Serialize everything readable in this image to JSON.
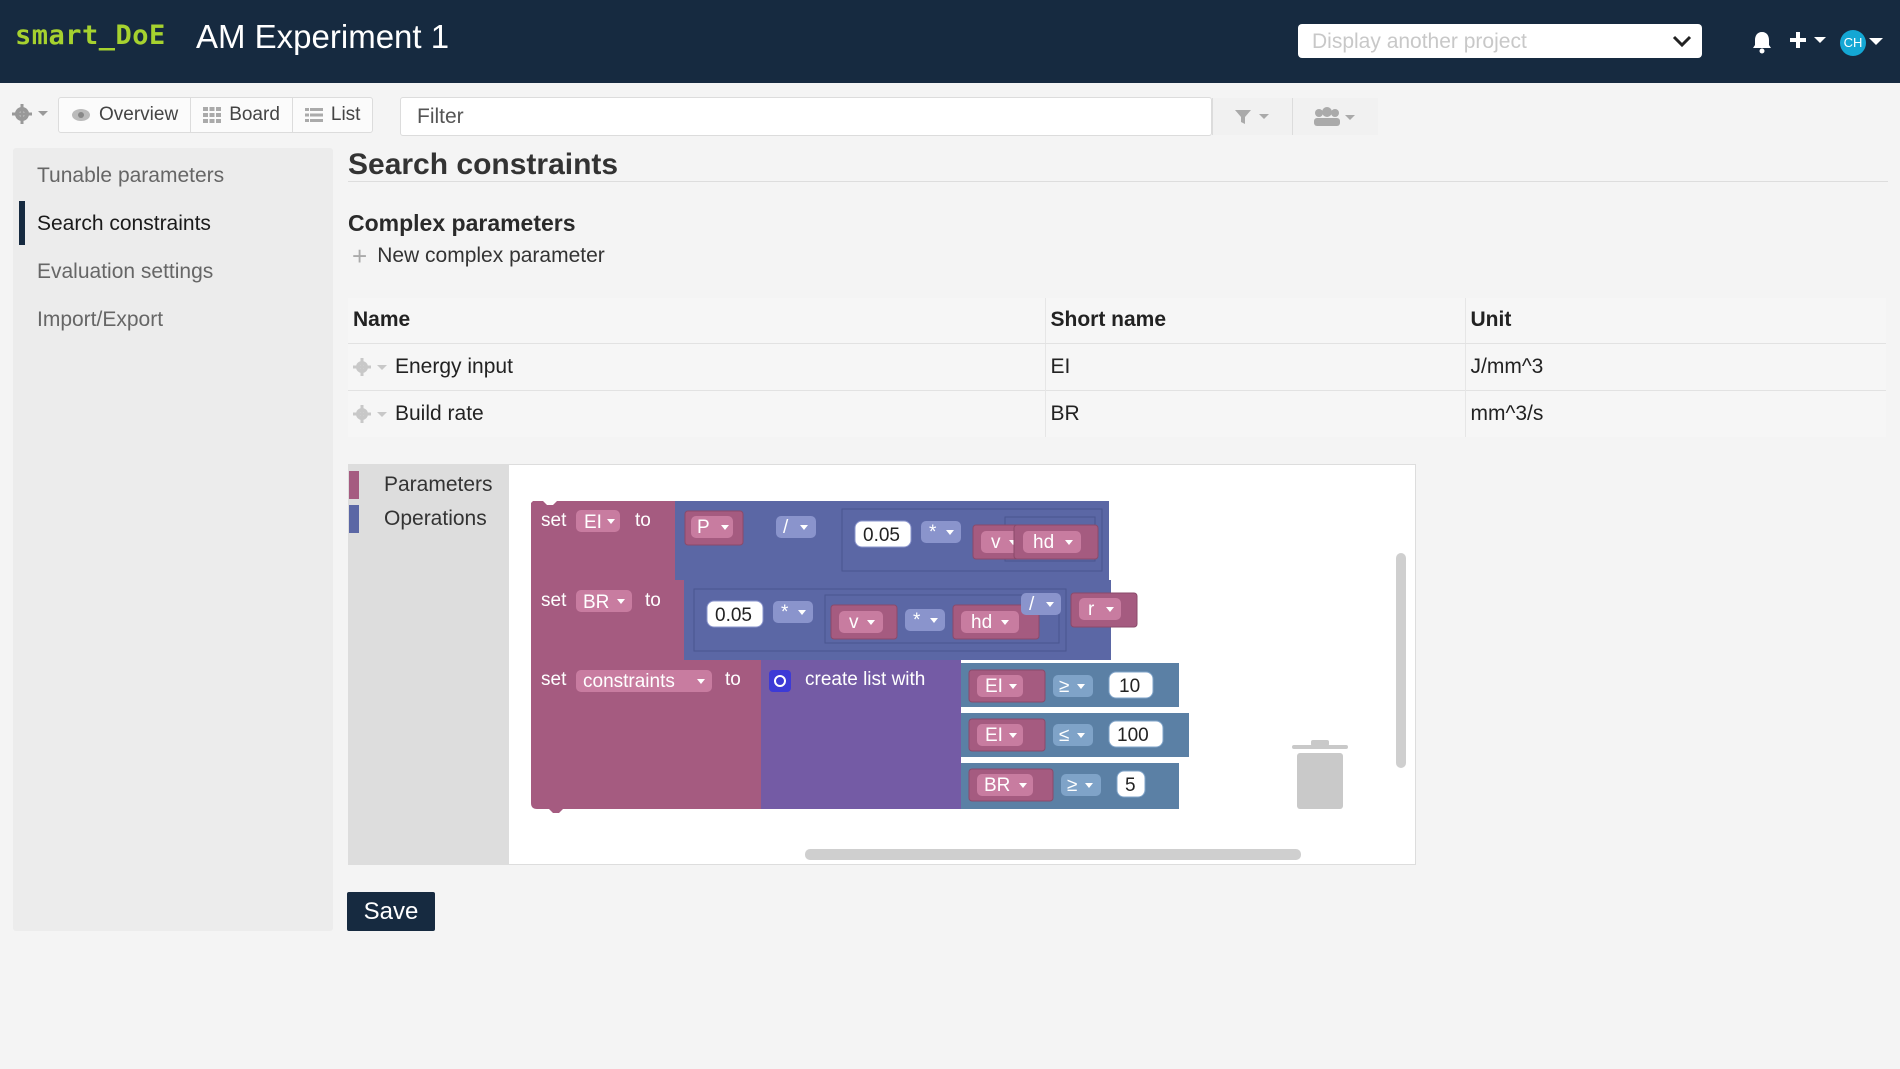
{
  "header": {
    "logo": "smart_DoE",
    "project_title": "AM Experiment 1",
    "project_select_placeholder": "Display another project",
    "avatar_initials": "CH"
  },
  "toolbar": {
    "tabs": [
      {
        "label": "Overview",
        "icon": "eye-icon"
      },
      {
        "label": "Board",
        "icon": "grid-icon"
      },
      {
        "label": "List",
        "icon": "list-icon"
      }
    ],
    "filter_placeholder": "Filter"
  },
  "sidebar": {
    "items": [
      {
        "label": "Tunable parameters",
        "active": false
      },
      {
        "label": "Search constraints",
        "active": true
      },
      {
        "label": "Evaluation settings",
        "active": false
      },
      {
        "label": "Import/Export",
        "active": false
      }
    ]
  },
  "main": {
    "title": "Search constraints",
    "section_title": "Complex parameters",
    "new_param_label": "New complex parameter",
    "table": {
      "headers": [
        "Name",
        "Short name",
        "Unit"
      ],
      "rows": [
        {
          "name": "Energy input",
          "short": "EI",
          "unit": "J/mm^3"
        },
        {
          "name": "Build rate",
          "short": "BR",
          "unit": "mm^3/s"
        }
      ]
    },
    "save_label": "Save"
  },
  "blockly": {
    "categories": [
      {
        "label": "Parameters",
        "color": "#a55b80"
      },
      {
        "label": "Operations",
        "color": "#5b67a5"
      }
    ],
    "blocks": {
      "set": "set",
      "to": "to",
      "var_ei": "EI",
      "var_br": "BR",
      "var_constraints": "constraints",
      "create_list": "create list with",
      "p": "P",
      "v": "v",
      "hd": "hd",
      "r": "r",
      "div": "/",
      "mul": "*",
      "ge": "≥",
      "le": "≤",
      "num_005": "0.05",
      "num_10": "10",
      "num_100": "100",
      "num_5": "5"
    }
  },
  "colors": {
    "header_bg": "#162a40",
    "logo": "#a6d22f",
    "variable_block": "#a55b80",
    "math_block": "#5b67a5",
    "list_block": "#745ba5",
    "compare_block": "#5b80a5"
  }
}
